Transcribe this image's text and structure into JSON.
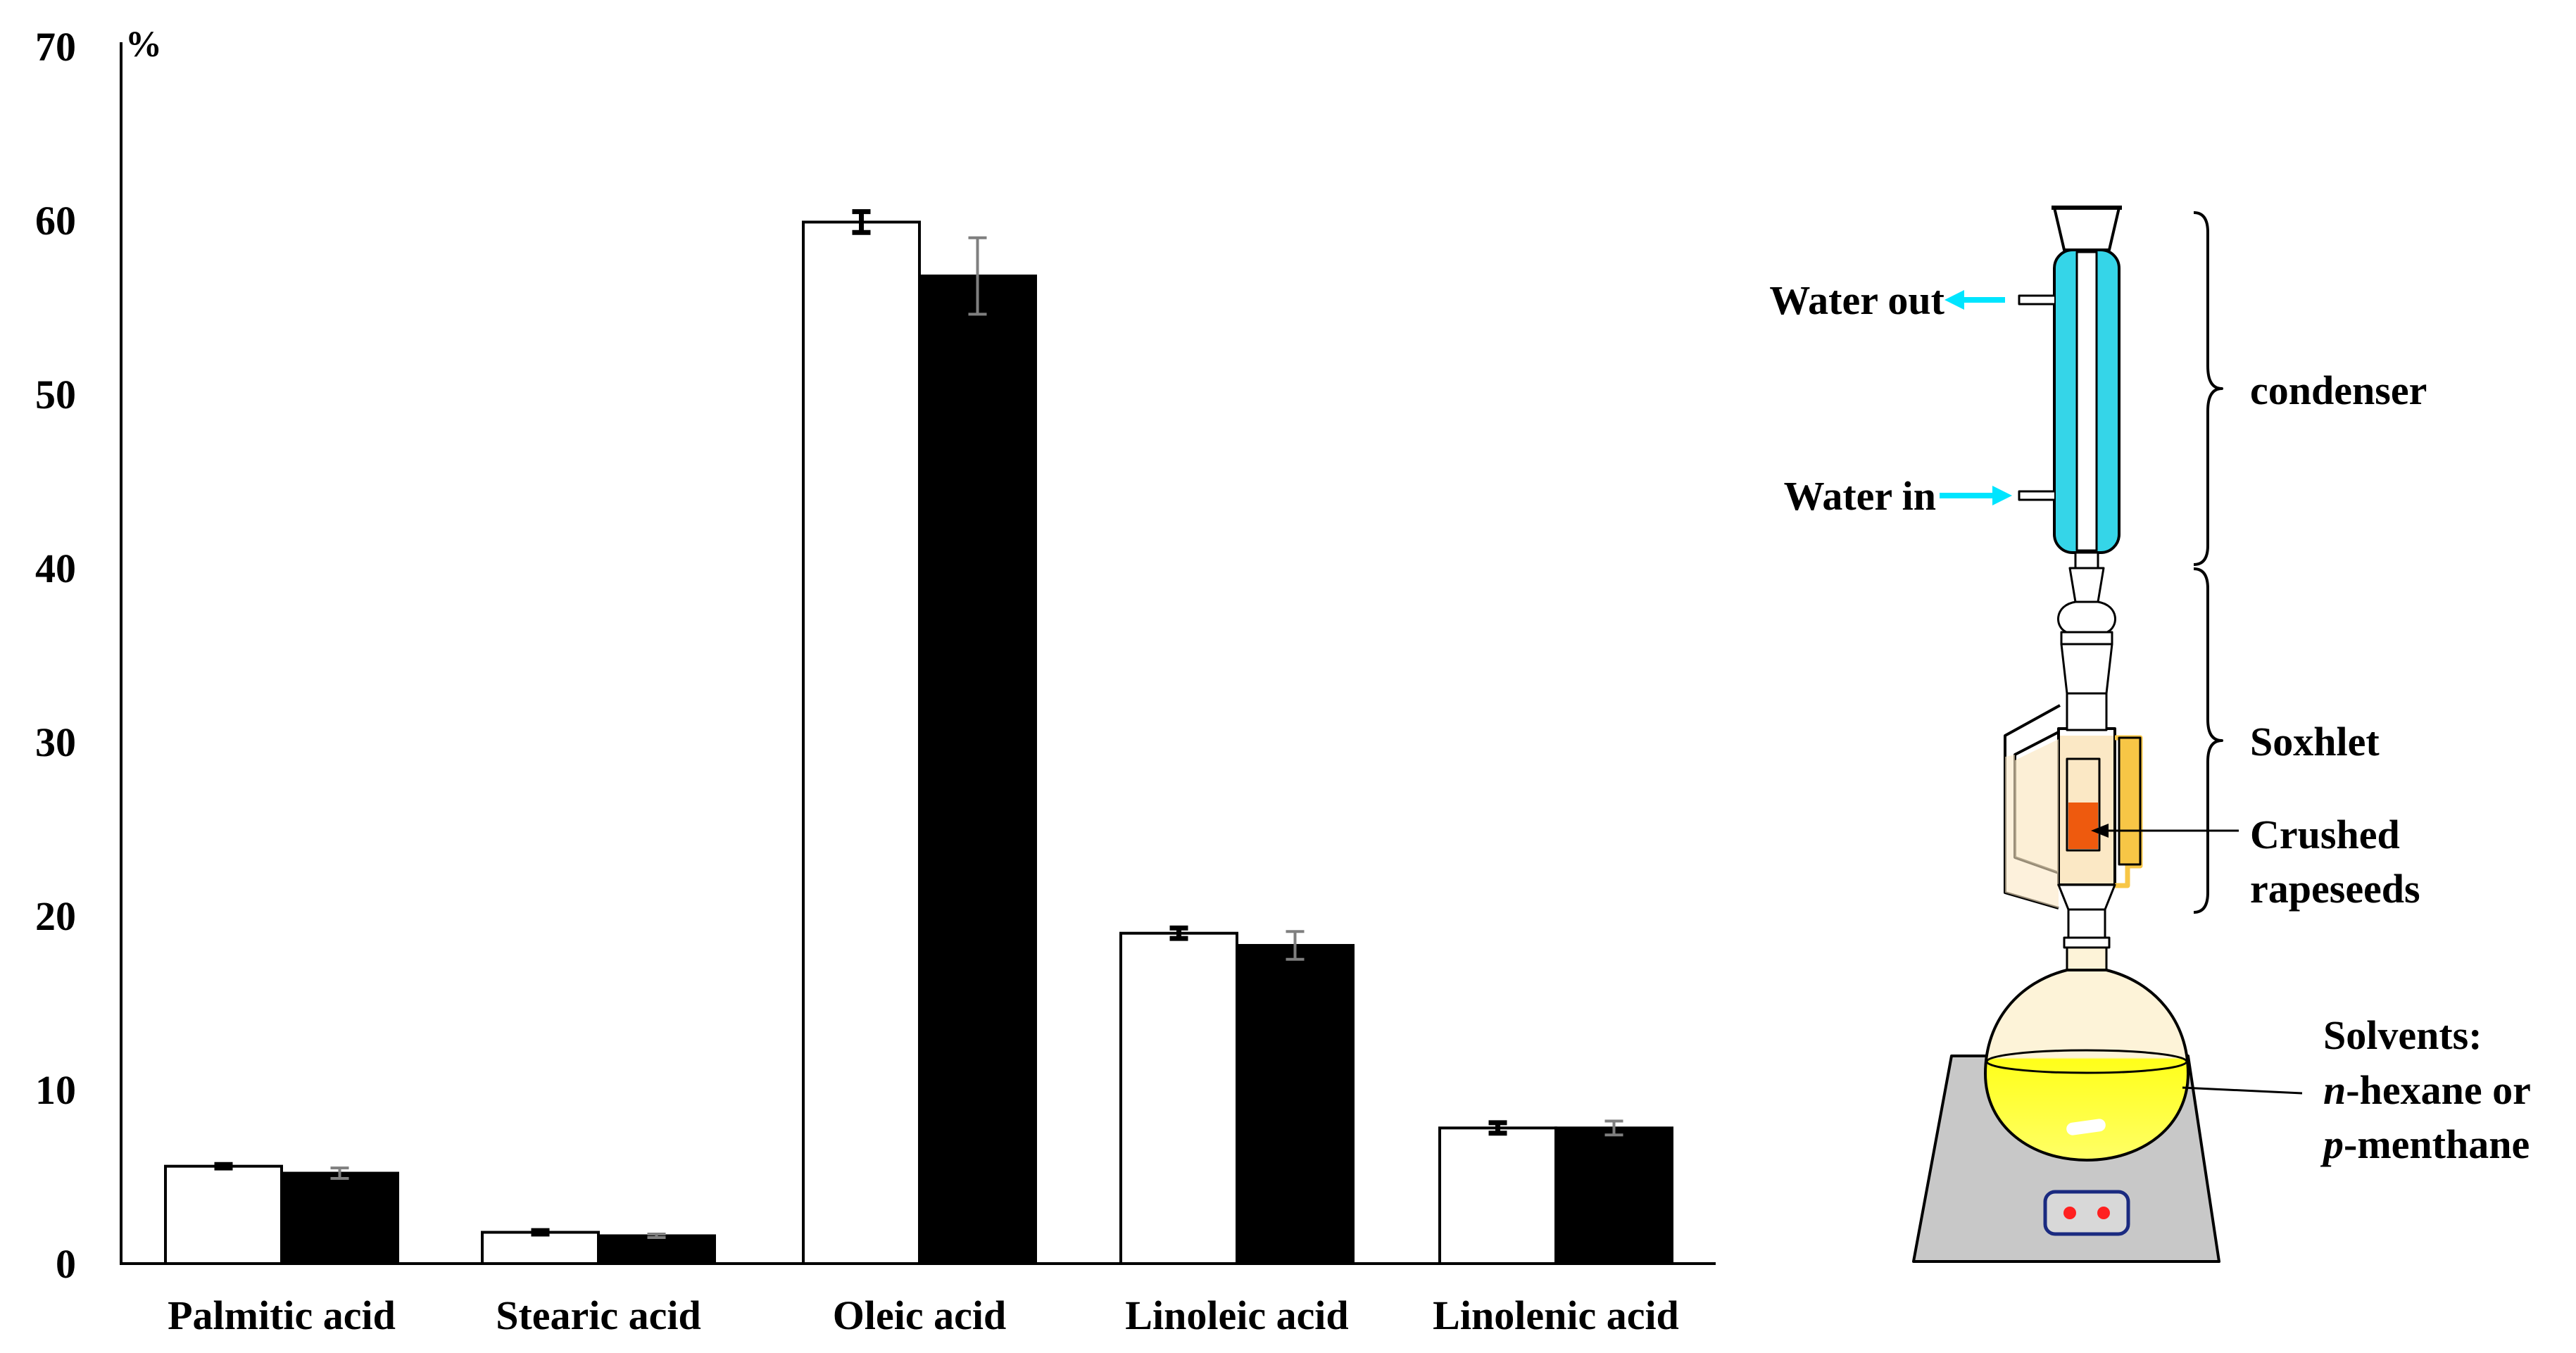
{
  "chart_data": {
    "type": "bar",
    "unit_label": "%",
    "ylim": [
      0,
      70
    ],
    "yticks": [
      "0",
      "10",
      "20",
      "30",
      "40",
      "50",
      "60",
      "70"
    ],
    "categories": [
      "Palmitic acid",
      "Stearic acid",
      "Oleic acid",
      "Linoleic acid",
      "Linolenic acid"
    ],
    "series": [
      {
        "fill": "#ffffff",
        "error_color": "#000000",
        "values": [
          5.6,
          1.8,
          59.9,
          19.0,
          7.8
        ],
        "errors": [
          0.1,
          0.1,
          0.6,
          0.3,
          0.3
        ]
      },
      {
        "fill": "#000000",
        "error_color": "#7f7f7f",
        "values": [
          5.2,
          1.6,
          56.8,
          18.3,
          7.8
        ],
        "errors": [
          0.3,
          0.1,
          2.2,
          0.8,
          0.4
        ]
      }
    ],
    "grid": false,
    "legend": "none"
  },
  "diagram": {
    "labels": {
      "water_out": "Water out",
      "water_in": "Water in",
      "condenser": "condenser",
      "soxhlet": "Soxhlet",
      "crushed_1": "Crushed",
      "crushed_2": "rapeseeds",
      "solvents_1": "Solvents:",
      "solvents_2_it": "n",
      "solvents_2_rest": "-hexane or",
      "solvents_3_it": "p",
      "solvents_3_rest": "-menthane"
    },
    "colors": {
      "condenser_water": "#35d5e8",
      "arrow": "#00e5ff",
      "extract_light": "#fbe8c5",
      "seeds": "#ee5a0e",
      "siphon": "#f7c646",
      "flask_top": "#fdf3d8",
      "solvent": "#ffff1a",
      "hotplate": "#c8c8c8",
      "indicator": "#ff2020"
    }
  }
}
